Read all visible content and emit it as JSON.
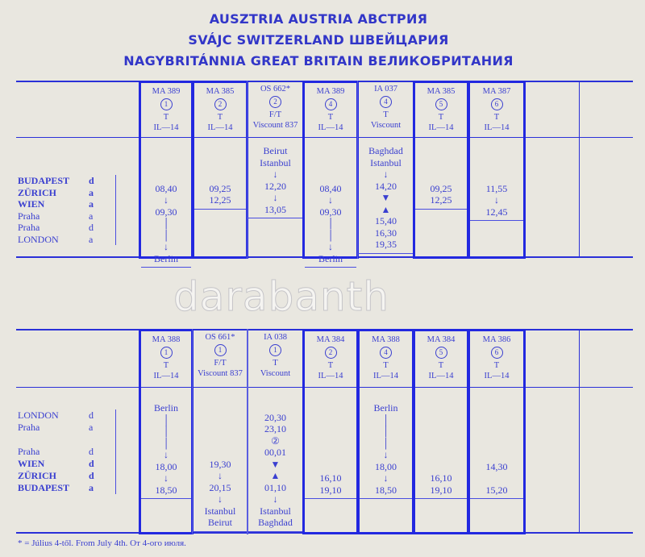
{
  "title": [
    "AUSZTRIA   AUSTRIA   АВСТРИЯ",
    "SVÁJC   SWITZERLAND   ШВЕЙЦАРИЯ",
    "NAGYBRITÁNNIA   GREAT BRITAIN   ВЕЛИКОБРИТАНИЯ"
  ],
  "outbound": {
    "stations": [
      {
        "name": "BUDAPEST",
        "code": "d",
        "bold": true
      },
      {
        "name": "ZÜRICH",
        "code": "a",
        "bold": true
      },
      {
        "name": "WIEN",
        "code": "a",
        "bold": true
      },
      {
        "name": "Praha",
        "code": "a",
        "bold": false
      },
      {
        "name": "Praha",
        "code": "d",
        "bold": false
      },
      {
        "name": "LONDON",
        "code": "a",
        "bold": false
      }
    ],
    "flights": [
      {
        "flight": "MA 389",
        "day": "1",
        "class": "T",
        "aircraft": "IL—14",
        "lines": [
          "",
          "",
          "",
          "08,40",
          "↓",
          "09,30",
          "│",
          "│",
          "↓",
          "Berlin"
        ]
      },
      {
        "flight": "MA 385",
        "day": "2",
        "class": "T",
        "aircraft": "IL—14",
        "lines": [
          "",
          "",
          "",
          "09,25",
          "12,25"
        ]
      },
      {
        "flight": "OS 662*",
        "day": "2",
        "class": "F/T",
        "aircraft": "Viscount 837",
        "lines": [
          "Beirut",
          "Istanbul",
          "↓",
          "12,20",
          "↓",
          "13,05"
        ]
      },
      {
        "flight": "MA 389",
        "day": "4",
        "class": "T",
        "aircraft": "IL—14",
        "lines": [
          "",
          "",
          "",
          "08,40",
          "↓",
          "09,30",
          "│",
          "│",
          "↓",
          "Berlin"
        ]
      },
      {
        "flight": "IA 037",
        "day": "4",
        "class": "T",
        "aircraft": "Viscount",
        "lines": [
          "Baghdad",
          "Istanbul",
          "↓",
          "14,20",
          "▼",
          "▲",
          "15,40",
          "16,30",
          "19,35"
        ]
      },
      {
        "flight": "MA 385",
        "day": "5",
        "class": "T",
        "aircraft": "IL—14",
        "lines": [
          "",
          "",
          "",
          "09,25",
          "12,25"
        ]
      },
      {
        "flight": "MA 387",
        "day": "6",
        "class": "T",
        "aircraft": "IL—14",
        "lines": [
          "",
          "",
          "",
          "11,55",
          "↓",
          "12,45"
        ]
      }
    ]
  },
  "inbound": {
    "stations": [
      {
        "name": "LONDON",
        "code": "d",
        "bold": false
      },
      {
        "name": "Praha",
        "code": "a",
        "bold": false
      },
      {
        "name": "",
        "code": "",
        "bold": false
      },
      {
        "name": "Praha",
        "code": "d",
        "bold": false
      },
      {
        "name": "WIEN",
        "code": "d",
        "bold": true
      },
      {
        "name": "ZÜRICH",
        "code": "d",
        "bold": true
      },
      {
        "name": "BUDAPEST",
        "code": "a",
        "bold": true
      }
    ],
    "flights": [
      {
        "flight": "MA 388",
        "day": "1",
        "class": "T",
        "aircraft": "IL—14",
        "lines": [
          "Berlin",
          "│",
          "│",
          "│",
          "↓",
          "18,00",
          "↓",
          "18,50"
        ]
      },
      {
        "flight": "OS 661*",
        "day": "1",
        "class": "F/T",
        "aircraft": "Viscount 837",
        "lines": [
          "",
          "",
          "",
          "",
          "",
          "19,30",
          "↓",
          "20,15",
          "↓",
          "Istanbul",
          "Beirut"
        ]
      },
      {
        "flight": "IA 038",
        "day": "1",
        "class": "T",
        "aircraft": "Viscount",
        "lines": [
          "",
          "20,30",
          "23,10",
          "②",
          "00,01",
          "▼",
          "▲",
          "01,10",
          "↓",
          "Istanbul",
          "Baghdad"
        ]
      },
      {
        "flight": "MA 384",
        "day": "2",
        "class": "T",
        "aircraft": "IL—14",
        "lines": [
          "",
          "",
          "",
          "",
          "",
          "",
          "16,10",
          "19,10"
        ]
      },
      {
        "flight": "MA 388",
        "day": "4",
        "class": "T",
        "aircraft": "IL—14",
        "lines": [
          "Berlin",
          "│",
          "│",
          "│",
          "↓",
          "18,00",
          "↓",
          "18,50"
        ]
      },
      {
        "flight": "MA 384",
        "day": "5",
        "class": "T",
        "aircraft": "IL—14",
        "lines": [
          "",
          "",
          "",
          "",
          "",
          "",
          "16,10",
          "19,10"
        ]
      },
      {
        "flight": "MA 386",
        "day": "6",
        "class": "T",
        "aircraft": "IL—14",
        "lines": [
          "",
          "",
          "",
          "",
          "",
          "14,30",
          "",
          "15,20"
        ]
      }
    ]
  },
  "footnote": "* = Július 4-től.  From July 4th.  От 4-ого июля.",
  "watermark": "darabanth",
  "colors": {
    "ink": "#3a3fd0",
    "rule": "#2228e0",
    "paper": "#e9e7e0"
  }
}
